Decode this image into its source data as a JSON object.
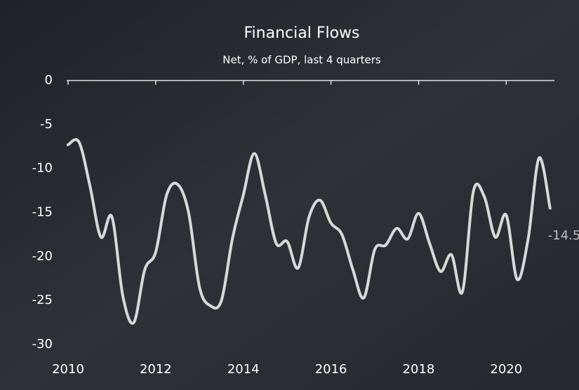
{
  "chart_data": {
    "type": "line",
    "title": "Financial Flows",
    "subtitle": "Net, % of GDP, last 4 quarters",
    "x": [
      2010,
      2010.25,
      2010.5,
      2010.75,
      2011,
      2011.25,
      2011.5,
      2011.75,
      2012,
      2012.25,
      2012.5,
      2012.75,
      2013,
      2013.25,
      2013.5,
      2013.75,
      2014,
      2014.25,
      2014.5,
      2014.75,
      2015,
      2015.25,
      2015.5,
      2015.75,
      2016,
      2016.25,
      2016.5,
      2016.75,
      2017,
      2017.25,
      2017.5,
      2017.75,
      2018,
      2018.25,
      2018.5,
      2018.75,
      2019,
      2019.25,
      2019.5,
      2019.75,
      2020,
      2020.25,
      2020.5,
      2020.75,
      2021
    ],
    "values": [
      -7.3,
      -7.0,
      -12,
      -17.8,
      -15.5,
      -24.5,
      -27.5,
      -21.5,
      -19.5,
      -13,
      -11.8,
      -15,
      -23.5,
      -25.6,
      -25,
      -18,
      -13,
      -8.3,
      -13,
      -18.5,
      -18.3,
      -21.3,
      -15.5,
      -13.6,
      -16.2,
      -17.5,
      -21.5,
      -24.7,
      -19.2,
      -18.7,
      -16.8,
      -18,
      -15.1,
      -18.5,
      -21.7,
      -19.8,
      -24,
      -12.6,
      -13.2,
      -17.8,
      -15.3,
      -22.6,
      -18,
      -8.8,
      -14.5
    ],
    "color": "#d9d9d9",
    "xlim": [
      2010,
      2021.1
    ],
    "xticks": [
      2010,
      2012,
      2014,
      2016,
      2018,
      2020
    ],
    "ylim": [
      -30,
      0
    ],
    "yticks": [
      0,
      -5,
      -10,
      -15,
      -20,
      -25,
      -30
    ]
  }
}
